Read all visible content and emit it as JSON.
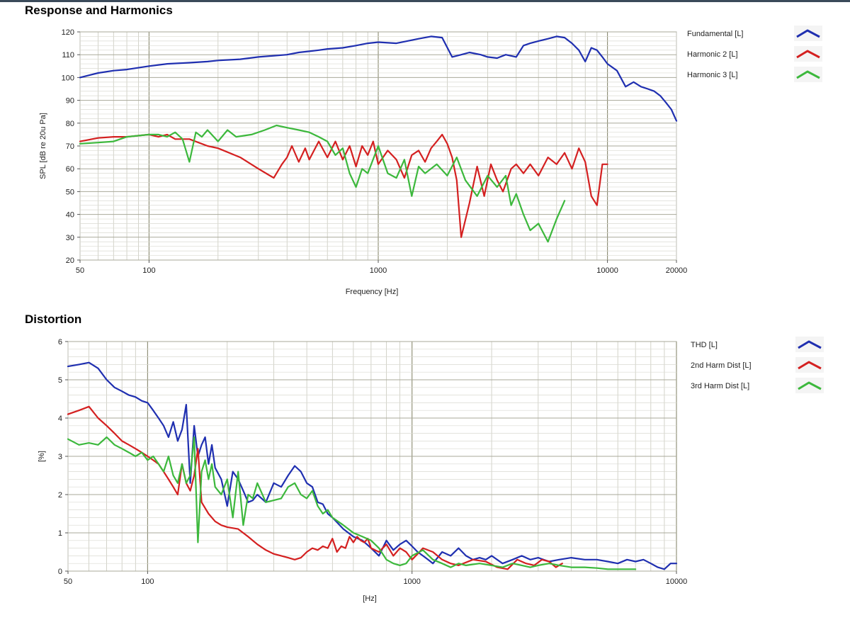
{
  "chart_data": [
    {
      "type": "line",
      "title": "Response and Harmonics",
      "xlabel": "Frequency [Hz]",
      "ylabel": "SPL [dB re 20u Pa]",
      "xscale": "log",
      "xlim": [
        50,
        20000
      ],
      "ylim": [
        20,
        120
      ],
      "xticks": [
        50,
        100,
        1000,
        10000,
        20000
      ],
      "xtick_labels": [
        "50",
        "100",
        "1000",
        "10000",
        "20000"
      ],
      "yticks": [
        20,
        30,
        40,
        50,
        60,
        70,
        80,
        90,
        100,
        110,
        120
      ],
      "ytick_labels": [
        "20",
        "30",
        "40",
        "50",
        "60",
        "70",
        "80",
        "90",
        "100",
        "110",
        "120"
      ],
      "grid": true,
      "legend_position": "right",
      "series": [
        {
          "name": "Fundamental [L]",
          "color": "#1f2fb0",
          "x": [
            50,
            60,
            70,
            80,
            100,
            120,
            150,
            180,
            200,
            250,
            300,
            400,
            450,
            500,
            550,
            600,
            700,
            800,
            900,
            1000,
            1200,
            1500,
            1700,
            1900,
            2100,
            2300,
            2500,
            2800,
            3000,
            3300,
            3600,
            4000,
            4300,
            4600,
            5000,
            5500,
            6000,
            6500,
            7000,
            7500,
            8000,
            8500,
            9000,
            9500,
            10000,
            11000,
            12000,
            13000,
            14000,
            15000,
            16000,
            17000,
            18000,
            19000,
            20000
          ],
          "y": [
            100,
            102,
            103,
            103.5,
            105,
            106,
            106.5,
            107,
            107.5,
            108,
            109,
            110,
            111,
            111.5,
            112,
            112.5,
            113,
            114,
            115,
            115.5,
            115,
            117,
            118,
            117.5,
            109,
            110,
            111,
            110,
            109,
            108.5,
            110,
            109,
            114,
            115,
            116,
            117,
            118,
            117.5,
            115,
            112,
            107,
            113,
            112,
            109,
            106,
            103,
            96,
            98,
            96,
            95,
            94,
            92,
            89,
            86,
            81
          ]
        },
        {
          "name": "Harmonic 2 [L]",
          "color": "#d42020",
          "x": [
            50,
            60,
            70,
            80,
            100,
            110,
            120,
            130,
            150,
            180,
            200,
            250,
            300,
            350,
            380,
            400,
            420,
            450,
            480,
            500,
            550,
            600,
            650,
            700,
            750,
            800,
            850,
            900,
            950,
            1000,
            1100,
            1200,
            1300,
            1400,
            1500,
            1600,
            1700,
            1800,
            1900,
            2000,
            2100,
            2200,
            2300,
            2500,
            2700,
            2900,
            3100,
            3300,
            3500,
            3800,
            4000,
            4300,
            4600,
            5000,
            5500,
            6000,
            6500,
            7000,
            7500,
            8000,
            8500,
            9000,
            9500,
            10000
          ],
          "y": [
            72,
            73.5,
            74,
            74,
            75,
            74,
            75,
            73,
            73,
            70,
            69,
            65,
            60,
            56,
            62,
            65,
            70,
            63,
            69,
            64,
            72,
            65,
            72,
            64,
            70,
            61,
            70,
            66,
            72,
            62,
            68,
            64,
            56,
            66,
            68,
            63,
            69,
            72,
            75,
            71,
            65,
            55,
            30,
            45,
            61,
            48,
            62,
            55,
            50,
            60,
            62,
            58,
            62,
            57,
            65,
            62,
            67,
            60,
            69,
            63,
            48,
            44,
            62,
            62
          ]
        },
        {
          "name": "Harmonic 3 [L]",
          "color": "#3cb83c",
          "x": [
            50,
            60,
            70,
            80,
            100,
            110,
            120,
            130,
            140,
            150,
            160,
            170,
            180,
            200,
            220,
            240,
            280,
            320,
            360,
            400,
            450,
            500,
            550,
            600,
            650,
            700,
            750,
            800,
            850,
            900,
            1000,
            1100,
            1200,
            1300,
            1400,
            1500,
            1600,
            1800,
            2000,
            2200,
            2400,
            2700,
            3000,
            3300,
            3600,
            3800,
            4000,
            4300,
            4600,
            5000,
            5500,
            6000,
            6500
          ],
          "y": [
            71,
            71.5,
            72,
            74,
            75,
            75,
            74,
            76,
            73,
            63,
            76,
            74,
            77,
            72,
            77,
            74,
            75,
            77,
            79,
            78,
            77,
            76,
            74,
            72,
            66,
            69,
            58,
            52,
            60,
            58,
            70,
            58,
            56,
            64,
            48,
            61,
            58,
            62,
            57,
            65,
            55,
            48,
            57,
            52,
            57,
            44,
            49,
            40,
            33,
            36,
            28,
            38,
            46
          ]
        }
      ]
    },
    {
      "type": "line",
      "title": "Distortion",
      "xlabel": "[Hz]",
      "ylabel": "[%]",
      "xscale": "log",
      "xlim": [
        50,
        10000
      ],
      "ylim": [
        0,
        6
      ],
      "xticks": [
        50,
        100,
        1000,
        10000
      ],
      "xtick_labels": [
        "50",
        "100",
        "1000",
        "10000"
      ],
      "yticks": [
        0,
        1,
        2,
        3,
        4,
        5,
        6
      ],
      "ytick_labels": [
        "0",
        "1",
        "2",
        "3",
        "4",
        "5",
        "6"
      ],
      "grid": true,
      "legend_position": "right",
      "series": [
        {
          "name": "THD [L]",
          "color": "#1f2fb0",
          "x": [
            50,
            55,
            60,
            65,
            70,
            75,
            80,
            85,
            90,
            95,
            100,
            105,
            110,
            115,
            120,
            125,
            130,
            135,
            140,
            145,
            150,
            155,
            160,
            165,
            170,
            175,
            180,
            190,
            200,
            210,
            220,
            230,
            240,
            250,
            260,
            280,
            300,
            320,
            340,
            360,
            380,
            400,
            420,
            440,
            460,
            480,
            500,
            550,
            600,
            650,
            700,
            750,
            800,
            850,
            900,
            950,
            1000,
            1050,
            1100,
            1150,
            1200,
            1300,
            1400,
            1500,
            1600,
            1700,
            1800,
            1900,
            2000,
            2200,
            2400,
            2600,
            2800,
            3000,
            3300,
            3600,
            4000,
            4500,
            5000,
            5500,
            6000,
            6500,
            7000,
            7500,
            8000,
            8500,
            9000,
            9500,
            10000
          ],
          "y": [
            5.35,
            5.4,
            5.45,
            5.3,
            5.0,
            4.8,
            4.7,
            4.6,
            4.55,
            4.45,
            4.4,
            4.2,
            4.0,
            3.8,
            3.5,
            3.9,
            3.4,
            3.7,
            4.35,
            2.3,
            3.8,
            3.0,
            3.3,
            3.5,
            2.8,
            3.3,
            2.7,
            2.4,
            1.7,
            2.6,
            2.4,
            2.1,
            1.8,
            1.85,
            2.0,
            1.8,
            2.3,
            2.2,
            2.5,
            2.75,
            2.6,
            2.3,
            2.2,
            1.8,
            1.75,
            1.5,
            1.4,
            1.1,
            0.9,
            0.8,
            0.6,
            0.4,
            0.8,
            0.55,
            0.7,
            0.8,
            0.65,
            0.5,
            0.4,
            0.3,
            0.2,
            0.5,
            0.4,
            0.6,
            0.4,
            0.3,
            0.35,
            0.3,
            0.4,
            0.2,
            0.3,
            0.4,
            0.3,
            0.35,
            0.25,
            0.3,
            0.35,
            0.3,
            0.3,
            0.25,
            0.2,
            0.3,
            0.25,
            0.3,
            0.2,
            0.1,
            0.05,
            0.2,
            0.2
          ]
        },
        {
          "name": "2nd Harm Dist [L]",
          "color": "#d42020",
          "x": [
            50,
            55,
            60,
            65,
            70,
            75,
            80,
            85,
            90,
            95,
            100,
            105,
            110,
            115,
            120,
            125,
            130,
            135,
            140,
            145,
            150,
            155,
            160,
            170,
            180,
            190,
            200,
            220,
            240,
            260,
            280,
            300,
            320,
            340,
            360,
            380,
            400,
            420,
            440,
            460,
            480,
            500,
            520,
            540,
            560,
            580,
            600,
            620,
            640,
            660,
            680,
            700,
            750,
            800,
            850,
            900,
            950,
            1000,
            1050,
            1100,
            1200,
            1300,
            1400,
            1500,
            1700,
            1900,
            2100,
            2300,
            2500,
            2700,
            2900,
            3100,
            3300,
            3500,
            3700
          ],
          "y": [
            4.1,
            4.2,
            4.3,
            4.0,
            3.8,
            3.6,
            3.4,
            3.3,
            3.2,
            3.1,
            3.0,
            2.9,
            2.8,
            2.6,
            2.4,
            2.2,
            2.0,
            2.8,
            2.3,
            2.1,
            2.5,
            3.2,
            1.8,
            1.5,
            1.3,
            1.2,
            1.15,
            1.1,
            0.9,
            0.7,
            0.55,
            0.45,
            0.4,
            0.35,
            0.3,
            0.35,
            0.5,
            0.6,
            0.55,
            0.65,
            0.6,
            0.85,
            0.5,
            0.65,
            0.6,
            0.9,
            0.75,
            0.9,
            0.8,
            0.75,
            0.85,
            0.6,
            0.5,
            0.7,
            0.4,
            0.6,
            0.5,
            0.3,
            0.45,
            0.6,
            0.5,
            0.3,
            0.2,
            0.15,
            0.3,
            0.25,
            0.1,
            0.05,
            0.3,
            0.2,
            0.15,
            0.3,
            0.25,
            0.1,
            0.2
          ]
        },
        {
          "name": "3rd Harm Dist [L]",
          "color": "#3cb83c",
          "x": [
            50,
            55,
            60,
            65,
            70,
            75,
            80,
            85,
            90,
            95,
            100,
            105,
            110,
            115,
            120,
            125,
            130,
            135,
            140,
            145,
            150,
            155,
            160,
            165,
            170,
            175,
            180,
            190,
            200,
            210,
            220,
            230,
            240,
            250,
            260,
            280,
            300,
            320,
            340,
            360,
            380,
            400,
            420,
            440,
            460,
            480,
            500,
            550,
            600,
            650,
            700,
            750,
            800,
            850,
            900,
            950,
            1000,
            1100,
            1200,
            1300,
            1400,
            1500,
            1600,
            1800,
            2000,
            2200,
            2400,
            2600,
            2800,
            3000,
            3300,
            3600,
            4000,
            4500,
            5000,
            5500,
            6000,
            6500,
            7000
          ],
          "y": [
            3.45,
            3.3,
            3.35,
            3.3,
            3.5,
            3.3,
            3.2,
            3.1,
            3.0,
            3.1,
            2.9,
            3.0,
            2.8,
            2.6,
            3.0,
            2.5,
            2.3,
            2.8,
            2.3,
            2.5,
            3.5,
            0.75,
            2.6,
            2.9,
            2.4,
            2.8,
            2.2,
            2.0,
            2.4,
            1.4,
            2.6,
            1.2,
            2.0,
            1.9,
            2.3,
            1.8,
            1.85,
            1.9,
            2.2,
            2.3,
            2.0,
            1.9,
            2.1,
            1.7,
            1.5,
            1.6,
            1.4,
            1.2,
            1.0,
            0.9,
            0.8,
            0.6,
            0.3,
            0.2,
            0.15,
            0.2,
            0.4,
            0.55,
            0.3,
            0.2,
            0.1,
            0.2,
            0.15,
            0.2,
            0.15,
            0.1,
            0.2,
            0.15,
            0.1,
            0.15,
            0.2,
            0.15,
            0.1,
            0.1,
            0.08,
            0.05,
            0.05,
            0.05,
            0.05
          ]
        }
      ]
    }
  ]
}
